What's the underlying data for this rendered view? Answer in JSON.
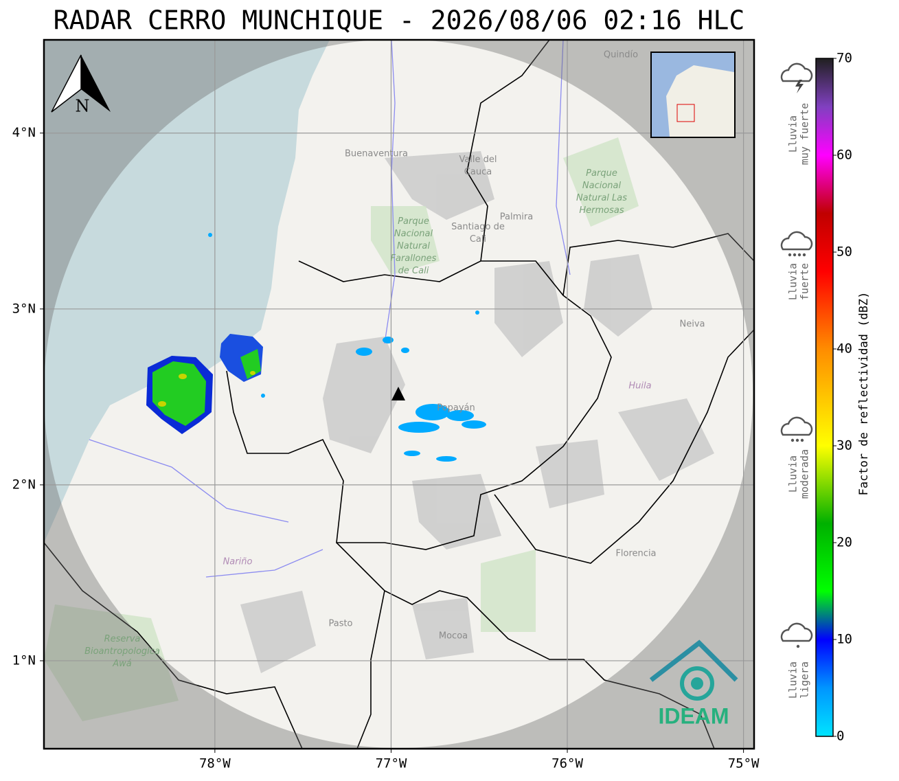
{
  "map": {
    "title": "RADAR CERRO MUNCHIQUE - 2026/08/06 02:16 HLC",
    "xlim": [
      -78.97,
      -74.94
    ],
    "ylim": [
      0.5,
      4.53
    ],
    "xticks": [
      {
        "value": -78,
        "label": "78°W"
      },
      {
        "value": -77,
        "label": "77°W"
      },
      {
        "value": -76,
        "label": "76°W"
      },
      {
        "value": -75,
        "label": "75°W"
      }
    ],
    "yticks": [
      {
        "value": 1,
        "label": "1°N"
      },
      {
        "value": 2,
        "label": "2°N"
      },
      {
        "value": 3,
        "label": "3°N"
      },
      {
        "value": 4,
        "label": "4°N"
      }
    ],
    "north": "N",
    "logo": "IDEAM",
    "place_labels": [
      "Buenaventura",
      "Valle del Cauca",
      "Palmira",
      "Santiago de Cali",
      "Parque Nacional Natural Farallones de Cali",
      "Parque Nacional Natural Las Hermosas",
      "Neiva",
      "Huila",
      "Popayán",
      "Nariño",
      "Pasto",
      "Mocoa",
      "Florencia",
      "Reserva Bioantropologica Awá",
      "Quindío"
    ],
    "colorbar": {
      "label": "Factor de reflectividad (dBZ)",
      "lim": [
        0,
        70
      ],
      "ticks": [
        0,
        10,
        20,
        30,
        40,
        50,
        60,
        70
      ],
      "stops": [
        {
          "value": 0,
          "color": "#00e5ff"
        },
        {
          "value": 5,
          "color": "#0095ff"
        },
        {
          "value": 10,
          "color": "#0000ff"
        },
        {
          "value": 15,
          "color": "#00ff00"
        },
        {
          "value": 22,
          "color": "#00b000"
        },
        {
          "value": 30,
          "color": "#ffff00"
        },
        {
          "value": 40,
          "color": "#ff8c00"
        },
        {
          "value": 48,
          "color": "#ff0000"
        },
        {
          "value": 54,
          "color": "#c00000"
        },
        {
          "value": 60,
          "color": "#ff00ff"
        },
        {
          "value": 65,
          "color": "#8040c0"
        },
        {
          "value": 70,
          "color": "#202020"
        }
      ]
    },
    "rain_levels": [
      [
        "Lluvia",
        "muy fuerte"
      ],
      [
        "Lluvia",
        "fuerte"
      ],
      [
        "Lluvia",
        "moderada"
      ],
      [
        "Lluvia",
        "ligera"
      ]
    ]
  }
}
